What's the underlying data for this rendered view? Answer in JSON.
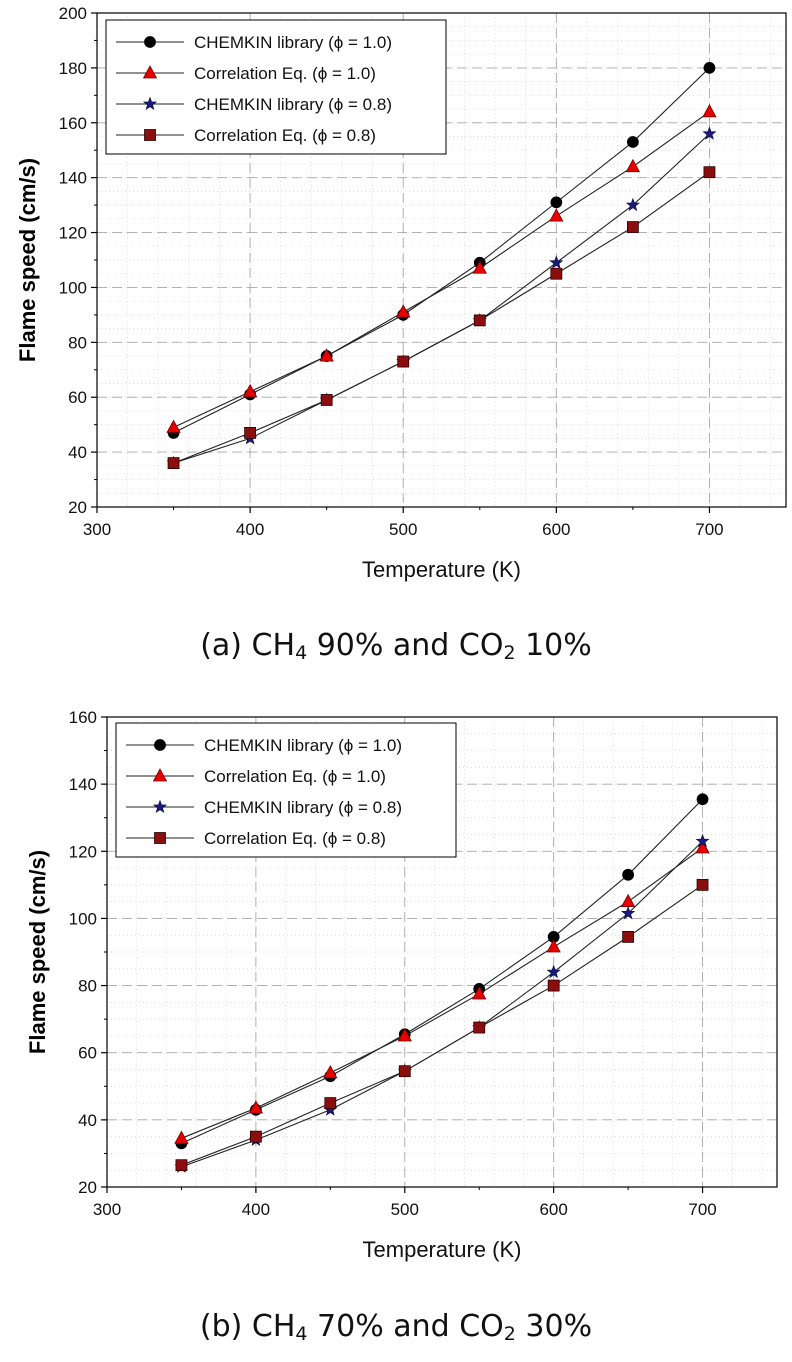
{
  "chart_data": [
    {
      "type": "line",
      "caption": {
        "prefix": "(a) CH",
        "sub1": "4",
        "mid": " 90% and CO",
        "sub2": "2",
        "suffix": " 10%"
      },
      "xlabel": "Temperature (K)",
      "ylabel": "Flame speed (cm/s)",
      "xlim": [
        300,
        750
      ],
      "ylim": [
        20,
        200
      ],
      "xticks": [
        300,
        400,
        500,
        600,
        700
      ],
      "yticks": [
        20,
        40,
        60,
        80,
        100,
        120,
        140,
        160,
        180,
        200
      ],
      "grid": true,
      "legend": "top-left",
      "x": [
        350,
        400,
        450,
        500,
        550,
        600,
        650,
        700
      ],
      "series": [
        {
          "name": "CHEMKIN library (ϕ = 1.0)",
          "marker": "circle",
          "color": "#000000",
          "values": [
            47,
            61,
            75,
            90,
            109,
            131,
            153,
            180
          ]
        },
        {
          "name": "Correlation Eq. (ϕ = 1.0)",
          "marker": "triangle",
          "color": "#e60000",
          "values": [
            49,
            62,
            75,
            91,
            107,
            126,
            144,
            164
          ]
        },
        {
          "name": "CHEMKIN library (ϕ = 0.8)",
          "marker": "star",
          "color": "#1a1a7a",
          "values": [
            36,
            45,
            59,
            73,
            88,
            109,
            130,
            156
          ]
        },
        {
          "name": "Correlation Eq. (ϕ = 0.8)",
          "marker": "square",
          "color": "#8b0e0e",
          "values": [
            36,
            47,
            59,
            73,
            88,
            105,
            122,
            142
          ]
        }
      ]
    },
    {
      "type": "line",
      "caption": {
        "prefix": "(b) CH",
        "sub1": "4",
        "mid": " 70% and CO",
        "sub2": "2",
        "suffix": " 30%"
      },
      "xlabel": "Temperature (K)",
      "ylabel": "Flame speed (cm/s)",
      "xlim": [
        300,
        750
      ],
      "ylim": [
        20,
        160
      ],
      "xticks": [
        300,
        400,
        500,
        600,
        700
      ],
      "yticks": [
        20,
        40,
        60,
        80,
        100,
        120,
        140,
        160
      ],
      "grid": true,
      "legend": "top-left",
      "x": [
        350,
        400,
        450,
        500,
        550,
        600,
        650,
        700
      ],
      "series": [
        {
          "name": "CHEMKIN library (ϕ = 1.0)",
          "marker": "circle",
          "color": "#000000",
          "values": [
            33,
            43,
            53,
            65.5,
            79,
            94.5,
            113,
            135.5
          ]
        },
        {
          "name": "Correlation Eq. (ϕ = 1.0)",
          "marker": "triangle",
          "color": "#e60000",
          "values": [
            34.5,
            43.5,
            54,
            65,
            77.5,
            91.5,
            105,
            121
          ]
        },
        {
          "name": "CHEMKIN library (ϕ = 0.8)",
          "marker": "star",
          "color": "#1a1a7a",
          "values": [
            26,
            34,
            43,
            54.5,
            67.5,
            84,
            101.5,
            123
          ]
        },
        {
          "name": "Correlation Eq. (ϕ = 0.8)",
          "marker": "square",
          "color": "#8b0e0e",
          "values": [
            26.5,
            35,
            45,
            54.5,
            67.5,
            80,
            94.5,
            110
          ]
        }
      ]
    }
  ]
}
